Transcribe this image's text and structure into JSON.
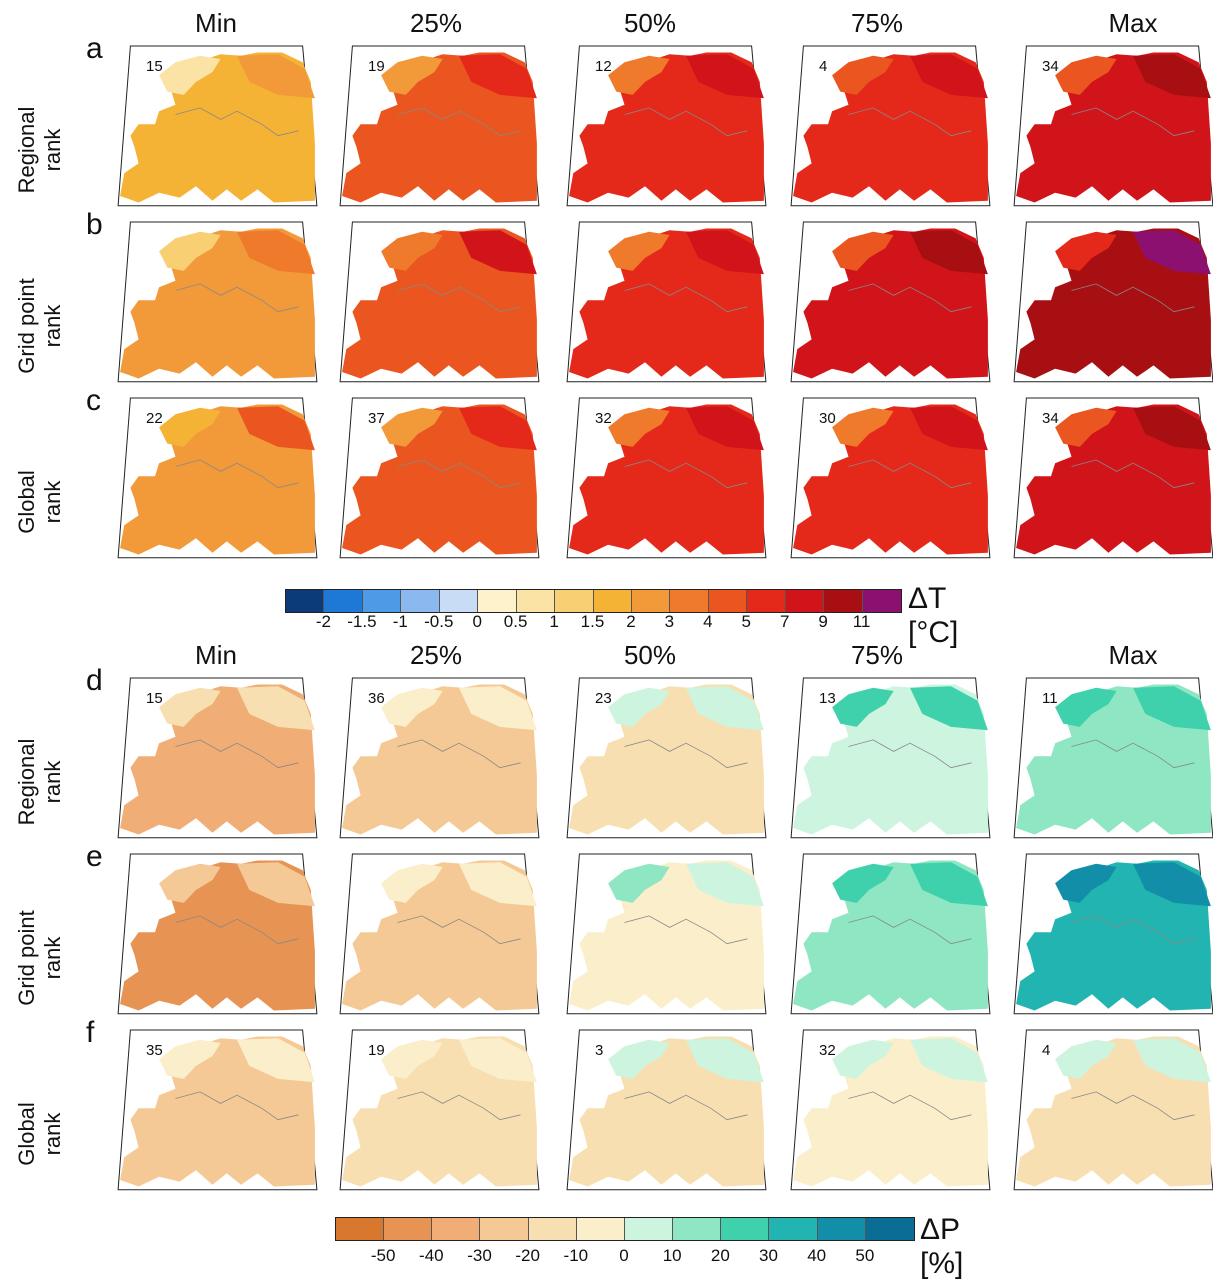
{
  "columns": [
    "Min",
    "25%",
    "50%",
    "75%",
    "Max"
  ],
  "temperature": {
    "rows": [
      {
        "letter": "a",
        "label_line1": "Regional",
        "label_line2": "rank",
        "ranks": [
          "15",
          "19",
          "12",
          "4",
          "34"
        ]
      },
      {
        "letter": "b",
        "label_line1": "Grid point",
        "label_line2": "rank",
        "ranks": [
          "",
          "",
          "",
          "",
          ""
        ]
      },
      {
        "letter": "c",
        "label_line1": "Global",
        "label_line2": "rank",
        "ranks": [
          "22",
          "37",
          "32",
          "30",
          "34"
        ]
      }
    ],
    "colorbar": {
      "title": "ΔT [°C]",
      "colors": [
        "#0b3b78",
        "#1e78d6",
        "#4f9ae6",
        "#8ab8ef",
        "#c8dcf6",
        "#fdf2cc",
        "#fbe3a6",
        "#f8cf72",
        "#f5b335",
        "#f29a3a",
        "#ef7a2c",
        "#ea5520",
        "#e4281a",
        "#d0141a",
        "#a80f12",
        "#8c1070"
      ],
      "tick_labels": [
        "-2",
        "-1.5",
        "-1",
        "-0.5",
        "0",
        "0.5",
        "1",
        "1.5",
        "2",
        "3",
        "4",
        "5",
        "7",
        "9",
        "11"
      ]
    },
    "panel_levels": [
      [
        0.55,
        0.72,
        0.78,
        0.82,
        0.86
      ],
      [
        0.6,
        0.76,
        0.8,
        0.84,
        0.92
      ],
      [
        0.62,
        0.74,
        0.8,
        0.8,
        0.88
      ]
    ]
  },
  "precipitation": {
    "rows": [
      {
        "letter": "d",
        "label_line1": "Regional",
        "label_line2": "rank",
        "ranks": [
          "15",
          "36",
          "23",
          "13",
          "11"
        ]
      },
      {
        "letter": "e",
        "label_line1": "Grid point",
        "label_line2": "rank",
        "ranks": [
          "",
          "",
          "",
          "",
          ""
        ]
      },
      {
        "letter": "f",
        "label_line1": "Global",
        "label_line2": "rank",
        "ranks": [
          "35",
          "19",
          "3",
          "32",
          "4"
        ]
      }
    ],
    "colorbar": {
      "title": "ΔP [%]",
      "colors": [
        "#d8782e",
        "#e79353",
        "#f0ad76",
        "#f5c996",
        "#f8dfb2",
        "#fbefcb",
        "#cdf4de",
        "#8fe6c2",
        "#3fd0ac",
        "#22b4b0",
        "#138ea8",
        "#0a6e94"
      ],
      "tick_labels": [
        "-50",
        "-40",
        "-30",
        "-20",
        "-10",
        "0",
        "10",
        "20",
        "30",
        "40",
        "50"
      ]
    },
    "panel_levels": [
      [
        0.2,
        0.28,
        0.4,
        0.55,
        0.62
      ],
      [
        0.1,
        0.3,
        0.45,
        0.6,
        0.78
      ],
      [
        0.3,
        0.34,
        0.4,
        0.42,
        0.38
      ]
    ]
  }
}
